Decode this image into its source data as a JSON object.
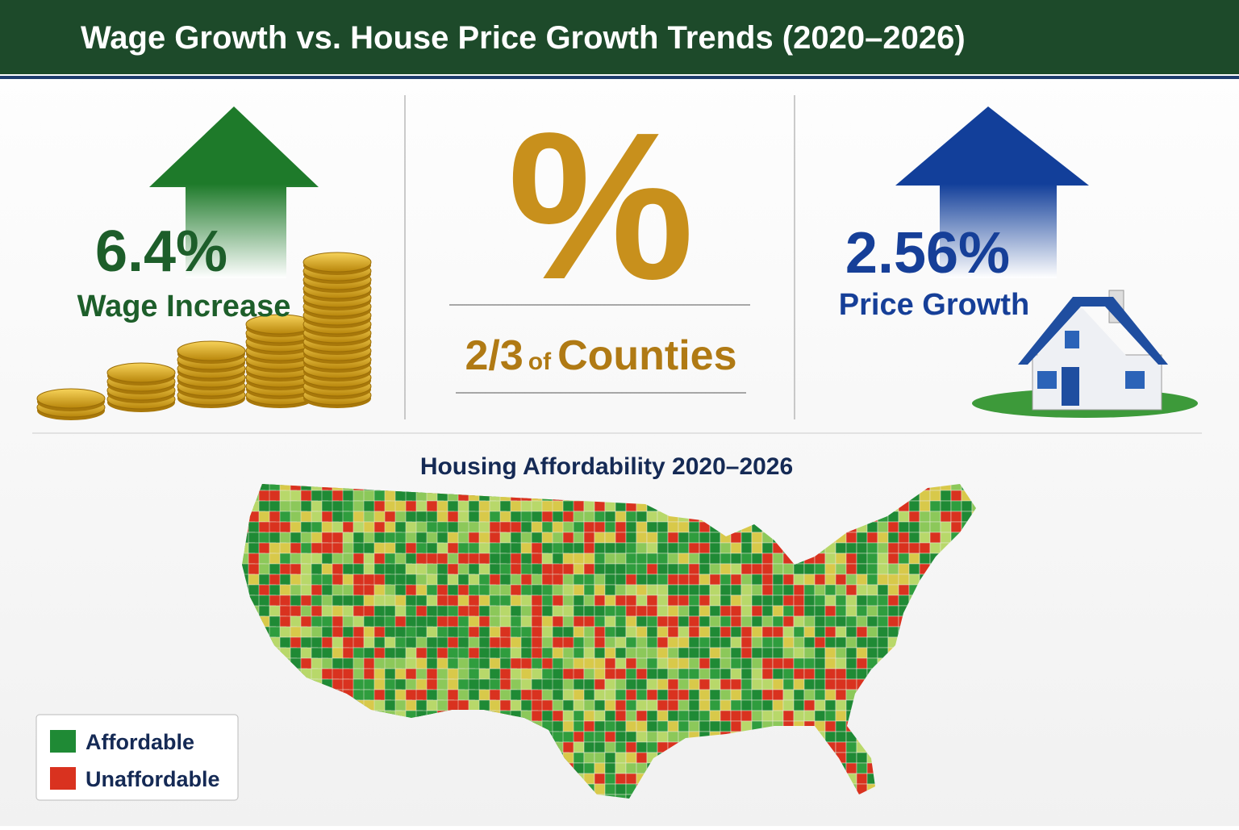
{
  "header": {
    "title": "Wage Growth vs. House Price Growth Trends (2020–2026)"
  },
  "stats": [
    {
      "value": "6.4%",
      "label": "Wage Increase"
    },
    {
      "symbol": "%",
      "fraction": "2/3",
      "connector": "of",
      "label": "Counties"
    },
    {
      "value": "2.56%",
      "label": "Price Growth"
    }
  ],
  "map": {
    "title": "Housing Affordability 2020–2026",
    "legend": [
      {
        "label": "Affordable",
        "color": "#1f8a35"
      },
      {
        "label": "Unaffordable",
        "color": "#d9321f"
      }
    ]
  }
}
